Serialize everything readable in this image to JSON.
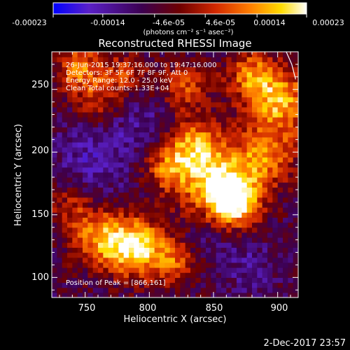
{
  "colorbar": {
    "min": -0.00023,
    "max": 0.00023,
    "ticks": [
      "-0.00023",
      "-0.00014",
      "-4.6e-05",
      "4.6e-05",
      "0.00014",
      "0.00023"
    ],
    "unit_label": "(photons cm⁻² s⁻¹ asec⁻²)"
  },
  "header": {
    "title": "Reconstructed RHESSI Image",
    "info_lines": [
      "26-Jun-2015 19:37:16.000 to 19:47:16.000",
      "Detectors: 3F 5F 6F 7F 8F 9F, Att 0",
      "Energy Range: 12.0 - 25.0 keV",
      "Clean     Total counts: 1.33E+04"
    ]
  },
  "annotations": {
    "peak_label": "Position of Peak = [866,161]",
    "footer_date": "2-Dec-2017 23:57"
  },
  "chart_data": {
    "type": "heatmap",
    "title": "Reconstructed RHESSI Image",
    "xlabel": "Heliocentric X (arcsec)",
    "ylabel": "Heliocentric Y (arcsec)",
    "xlim": [
      724,
      916
    ],
    "ylim": [
      84,
      280
    ],
    "x_ticks": [
      750,
      800,
      850,
      900
    ],
    "y_ticks": [
      100,
      150,
      200,
      250
    ],
    "x_tick_labels": [
      "750",
      "800",
      "850",
      "900"
    ],
    "y_tick_labels": [
      "100",
      "150",
      "200",
      "250"
    ],
    "cell_arcsec": 4,
    "value_min": -0.00023,
    "value_max": 0.00023,
    "peak_position": [
      866,
      161
    ],
    "colormap": [
      "#0000ff",
      "#5a20c8",
      "#3c0050",
      "#6e0000",
      "#d22800",
      "#ff8000",
      "#ffdc00",
      "#ffffff"
    ],
    "hot_spots": [
      {
        "x": 866,
        "y": 161,
        "amplitude": 1.0,
        "radius": 14
      },
      {
        "x": 848,
        "y": 182,
        "amplitude": 0.8,
        "radius": 22
      },
      {
        "x": 892,
        "y": 196,
        "amplitude": 0.55,
        "radius": 16
      },
      {
        "x": 902,
        "y": 240,
        "amplitude": 0.75,
        "radius": 18
      },
      {
        "x": 880,
        "y": 262,
        "amplitude": 0.55,
        "radius": 14
      },
      {
        "x": 832,
        "y": 208,
        "amplitude": 0.5,
        "radius": 14
      },
      {
        "x": 812,
        "y": 188,
        "amplitude": 0.45,
        "radius": 12
      },
      {
        "x": 790,
        "y": 124,
        "amplitude": 0.9,
        "radius": 16
      },
      {
        "x": 762,
        "y": 132,
        "amplitude": 0.65,
        "radius": 16
      },
      {
        "x": 820,
        "y": 112,
        "amplitude": 0.5,
        "radius": 12
      },
      {
        "x": 738,
        "y": 158,
        "amplitude": 0.35,
        "radius": 12
      },
      {
        "x": 746,
        "y": 266,
        "amplitude": 0.6,
        "radius": 14
      },
      {
        "x": 760,
        "y": 240,
        "amplitude": 0.35,
        "radius": 12
      },
      {
        "x": 782,
        "y": 262,
        "amplitude": 0.4,
        "radius": 12
      },
      {
        "x": 828,
        "y": 252,
        "amplitude": 0.45,
        "radius": 14
      }
    ],
    "cold_spots": [
      {
        "x": 758,
        "y": 196,
        "amplitude": 0.65,
        "radius": 22
      },
      {
        "x": 800,
        "y": 222,
        "amplitude": 0.45,
        "radius": 18
      },
      {
        "x": 878,
        "y": 110,
        "amplitude": 0.5,
        "radius": 16
      },
      {
        "x": 845,
        "y": 135,
        "amplitude": 0.35,
        "radius": 14
      }
    ],
    "limb_curve": [
      [
        905,
        284
      ],
      [
        911,
        270
      ],
      [
        914,
        258
      ]
    ]
  }
}
